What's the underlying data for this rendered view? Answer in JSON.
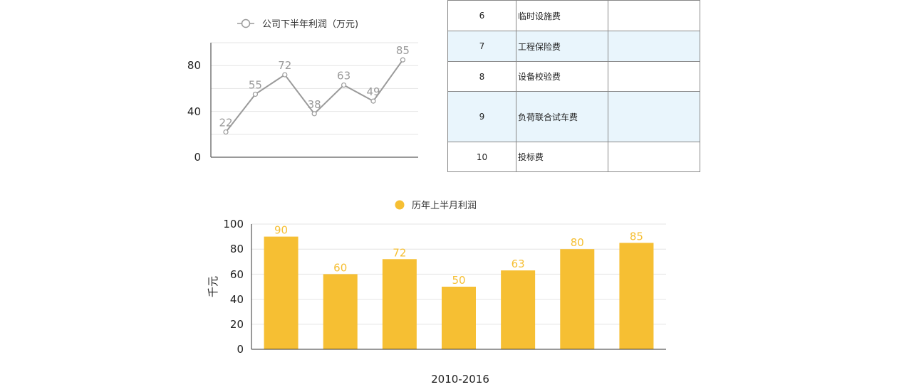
{
  "line_chart": {
    "legend": "公司下半年利润（万元)",
    "y_ticks": [
      "0",
      "40",
      "80"
    ]
  },
  "table": {
    "rows": [
      {
        "no": "6",
        "name": "临时设施费",
        "value": ""
      },
      {
        "no": "7",
        "name": "工程保险费",
        "value": ""
      },
      {
        "no": "8",
        "name": "设备校验费",
        "value": ""
      },
      {
        "no": "9",
        "name": "负荷联合试车费",
        "value": ""
      },
      {
        "no": "10",
        "name": "投标费",
        "value": ""
      }
    ]
  },
  "bar_chart": {
    "legend": "历年上半月利润",
    "ylabel": "千元",
    "xlabel": "2010-2016",
    "y_ticks": [
      "0",
      "20",
      "40",
      "60",
      "80",
      "100"
    ]
  },
  "colors": {
    "line": "#9a9a9a",
    "bar": "#f6bf33",
    "table_shade": "#e9f5fc"
  },
  "chart_data": [
    {
      "type": "line",
      "title": "",
      "series": [
        {
          "name": "公司下半年利润（万元)",
          "values": [
            22,
            55,
            72,
            38,
            63,
            49,
            85
          ]
        }
      ],
      "xlabel": "",
      "ylabel": "",
      "ylim": [
        0,
        100
      ],
      "y_ticks": [
        0,
        40,
        80
      ],
      "grid": true,
      "legend": "top"
    },
    {
      "type": "bar",
      "title": "",
      "categories": [
        "",
        "",
        "",
        "",
        "",
        "",
        ""
      ],
      "series": [
        {
          "name": "历年上半月利润",
          "values": [
            90,
            60,
            72,
            50,
            63,
            80,
            85
          ]
        }
      ],
      "xlabel": "2010-2016",
      "ylabel": "千元",
      "ylim": [
        0,
        100
      ],
      "y_ticks": [
        0,
        20,
        40,
        60,
        80,
        100
      ],
      "grid": true,
      "legend": "top"
    }
  ]
}
